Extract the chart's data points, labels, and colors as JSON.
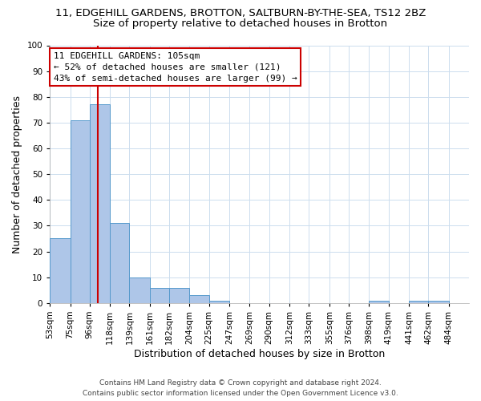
{
  "title_line1": "11, EDGEHILL GARDENS, BROTTON, SALTBURN-BY-THE-SEA, TS12 2BZ",
  "title_line2": "Size of property relative to detached houses in Brotton",
  "xlabel": "Distribution of detached houses by size in Brotton",
  "ylabel": "Number of detached properties",
  "bar_left_edges": [
    53,
    75,
    96,
    118,
    139,
    161,
    182,
    204,
    225,
    247,
    269,
    290,
    312,
    333,
    355,
    376,
    398,
    419,
    441,
    462
  ],
  "bar_widths": [
    22,
    21,
    22,
    21,
    22,
    21,
    22,
    21,
    22,
    22,
    21,
    22,
    21,
    22,
    21,
    22,
    21,
    22,
    21,
    22
  ],
  "bar_heights": [
    25,
    71,
    77,
    31,
    10,
    6,
    6,
    3,
    1,
    0,
    0,
    0,
    0,
    0,
    0,
    0,
    1,
    0,
    1,
    1
  ],
  "bar_color": "#aec6e8",
  "bar_edge_color": "#5599cc",
  "tick_labels": [
    "53sqm",
    "75sqm",
    "96sqm",
    "118sqm",
    "139sqm",
    "161sqm",
    "182sqm",
    "204sqm",
    "225sqm",
    "247sqm",
    "269sqm",
    "290sqm",
    "312sqm",
    "333sqm",
    "355sqm",
    "376sqm",
    "398sqm",
    "419sqm",
    "441sqm",
    "462sqm",
    "484sqm"
  ],
  "marker_x": 105,
  "marker_color": "#cc0000",
  "annotation_title": "11 EDGEHILL GARDENS: 105sqm",
  "annotation_line2": "← 52% of detached houses are smaller (121)",
  "annotation_line3": "43% of semi-detached houses are larger (99) →",
  "annotation_box_color": "#ffffff",
  "annotation_box_edge": "#cc0000",
  "ylim": [
    0,
    100
  ],
  "xlim": [
    53,
    506
  ],
  "footer_line1": "Contains HM Land Registry data © Crown copyright and database right 2024.",
  "footer_line2": "Contains public sector information licensed under the Open Government Licence v3.0.",
  "bg_color": "#ffffff",
  "grid_color": "#ccddee",
  "title_fontsize": 9.5,
  "subtitle_fontsize": 9.5,
  "axis_label_fontsize": 9,
  "tick_fontsize": 7.5,
  "annotation_fontsize": 8,
  "footer_fontsize": 6.5
}
